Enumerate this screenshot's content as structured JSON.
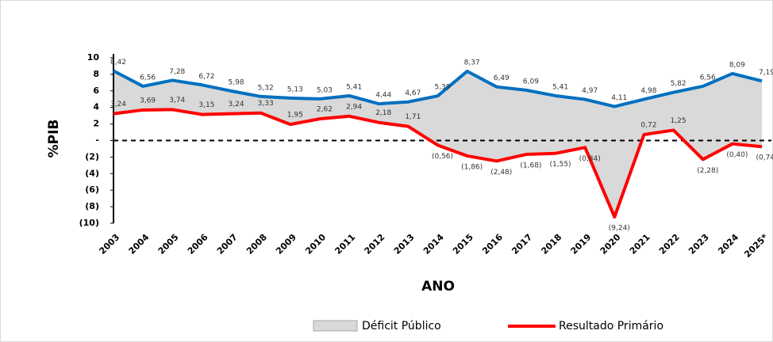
{
  "chart_data": {
    "type": "line",
    "y_label": "%PIB",
    "x_label": "ANO",
    "categories": [
      "2003",
      "2004",
      "2005",
      "2006",
      "2007",
      "2008",
      "2009",
      "2010",
      "2011",
      "2012",
      "2013",
      "2014",
      "2015",
      "2016",
      "2017",
      "2018",
      "2019",
      "2020",
      "2021",
      "2022",
      "2023",
      "2024",
      "2025*"
    ],
    "series": [
      {
        "name": "Déficit Público",
        "color": "#0070c0",
        "fill": "#d9d9d9",
        "values": [
          8.42,
          6.56,
          7.28,
          6.72,
          5.98,
          5.32,
          5.13,
          5.03,
          5.41,
          4.44,
          4.67,
          5.39,
          8.37,
          6.49,
          6.09,
          5.41,
          4.97,
          4.11,
          4.98,
          5.82,
          6.56,
          8.09,
          7.19
        ],
        "value_labels": [
          "8,42",
          "6,56",
          "7,28",
          "6,72",
          "5,98",
          "5,32",
          "5,13",
          "5,03",
          "5,41",
          "4,44",
          "4,67",
          "5,39",
          "8,37",
          "6,49",
          "6,09",
          "5,41",
          "4,97",
          "4,11",
          "4,98",
          "5,82",
          "6,56",
          "8,09",
          "7,19"
        ]
      },
      {
        "name": "Resultado Primário",
        "color": "#ff0000",
        "values": [
          3.24,
          3.69,
          3.74,
          3.15,
          3.24,
          3.33,
          1.95,
          2.62,
          2.94,
          2.18,
          1.71,
          -0.56,
          -1.86,
          -2.48,
          -1.68,
          -1.55,
          -0.84,
          -9.24,
          0.72,
          1.25,
          -2.28,
          -0.4,
          -0.74
        ],
        "value_labels": [
          "3,24",
          "3,69",
          "3,74",
          "3,15",
          "3,24",
          "3,33",
          "1,95",
          "2,62",
          "2,94",
          "2,18",
          "1,71",
          "(0,56)",
          "(1,86)",
          "(2,48)",
          "(1,68)",
          "(1,55)",
          "(0,84)",
          "(9,24)",
          "0,72",
          "1,25",
          "(2,28)",
          "(0,40)",
          "(0,74)"
        ]
      }
    ],
    "ylim": [
      -10,
      10
    ],
    "yticks": [
      {
        "value": -10,
        "label": "(10)"
      },
      {
        "value": -8,
        "label": "(8)"
      },
      {
        "value": -6,
        "label": "(6)"
      },
      {
        "value": -4,
        "label": "(4)"
      },
      {
        "value": -2,
        "label": "(2)"
      },
      {
        "value": 0,
        "label": "-"
      },
      2,
      4,
      6,
      8,
      10
    ],
    "zero_line": "dashed"
  }
}
